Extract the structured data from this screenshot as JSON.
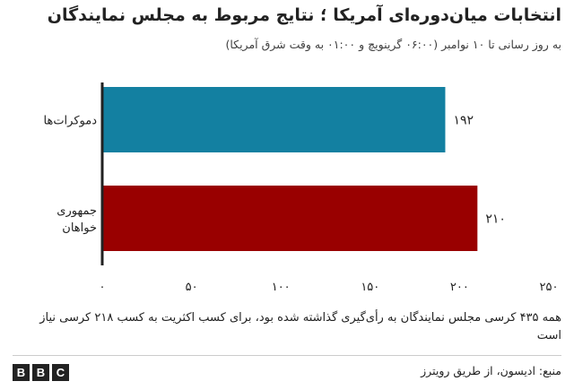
{
  "chart_data": {
    "type": "bar",
    "orientation": "horizontal",
    "title": "انتخابات میان‌دوره‌ای آمریکا ؛ نتایج مربوط به مجلس نمایندگان",
    "subtitle": "به روز رسانی تا ۱۰ نوامبر  (۰۶:۰۰ گرینویچ و ۰۱:۰۰ به وقت شرق آمریکا)",
    "categories": [
      {
        "label_lines": [
          "دموکرات‌ها"
        ],
        "value": 192,
        "value_label": "۱۹۲",
        "color": "#1380A1"
      },
      {
        "label_lines": [
          "جمهوری",
          "خواهان"
        ],
        "value": 210,
        "value_label": "۲۱۰",
        "color": "#990000"
      }
    ],
    "xlim": [
      0,
      250
    ],
    "xticks": [
      {
        "value": 0,
        "label": "۰"
      },
      {
        "value": 50,
        "label": "۵۰"
      },
      {
        "value": 100,
        "label": "۱۰۰"
      },
      {
        "value": 150,
        "label": "۱۵۰"
      },
      {
        "value": 200,
        "label": "۲۰۰"
      },
      {
        "value": 250,
        "label": "۲۵۰"
      }
    ],
    "grid": false,
    "axis_color": "#222222"
  },
  "note": "همه ۴۳۵ کرسی مجلس نمایندگان به رأی‌گیری گذاشته شده بود، برای کسب اکثریت به کسب ۲۱۸ کرسی نیاز است",
  "source": "منبع: ادیسون، از طریق رویترز",
  "logo": [
    "B",
    "B",
    "C"
  ]
}
